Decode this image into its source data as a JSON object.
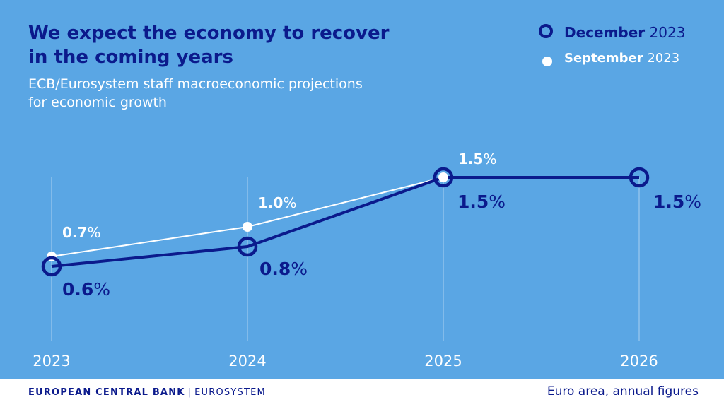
{
  "header": {
    "title_line1": "We expect the economy to recover",
    "title_line2": "in the coming years",
    "subtitle_line1": "ECB/Eurosystem staff macroeconomic projections",
    "subtitle_line2": "for economic growth"
  },
  "legend": {
    "december": {
      "bold": "December",
      "rest": "2023"
    },
    "september": {
      "bold": "September",
      "rest": "2023"
    }
  },
  "colors": {
    "background": "#5aa6e4",
    "december": "#0b1a8c",
    "september": "#ffffff",
    "footer_bg": "#ffffff"
  },
  "chart_data": {
    "type": "line",
    "x": [
      "2023",
      "2024",
      "2025",
      "2026"
    ],
    "series": [
      {
        "name": "September 2023",
        "values": [
          0.7,
          1.0,
          1.5,
          null
        ],
        "labels": [
          "0.7%",
          "1.0%",
          "1.5%",
          ""
        ]
      },
      {
        "name": "December 2023",
        "values": [
          0.6,
          0.8,
          1.5,
          1.5
        ],
        "labels": [
          "0.6%",
          "0.8%",
          "1.5%",
          "1.5%"
        ]
      }
    ],
    "title": "We expect the economy to recover in the coming years",
    "xlabel": "",
    "ylabel": "",
    "grid": "vertical lines at each year",
    "legend": "top-right"
  },
  "footer": {
    "brand_bold": "EUROPEAN CENTRAL BANK",
    "divider": "|",
    "brand_rest": "EUROSYSTEM",
    "note": "Euro area, annual figures"
  }
}
